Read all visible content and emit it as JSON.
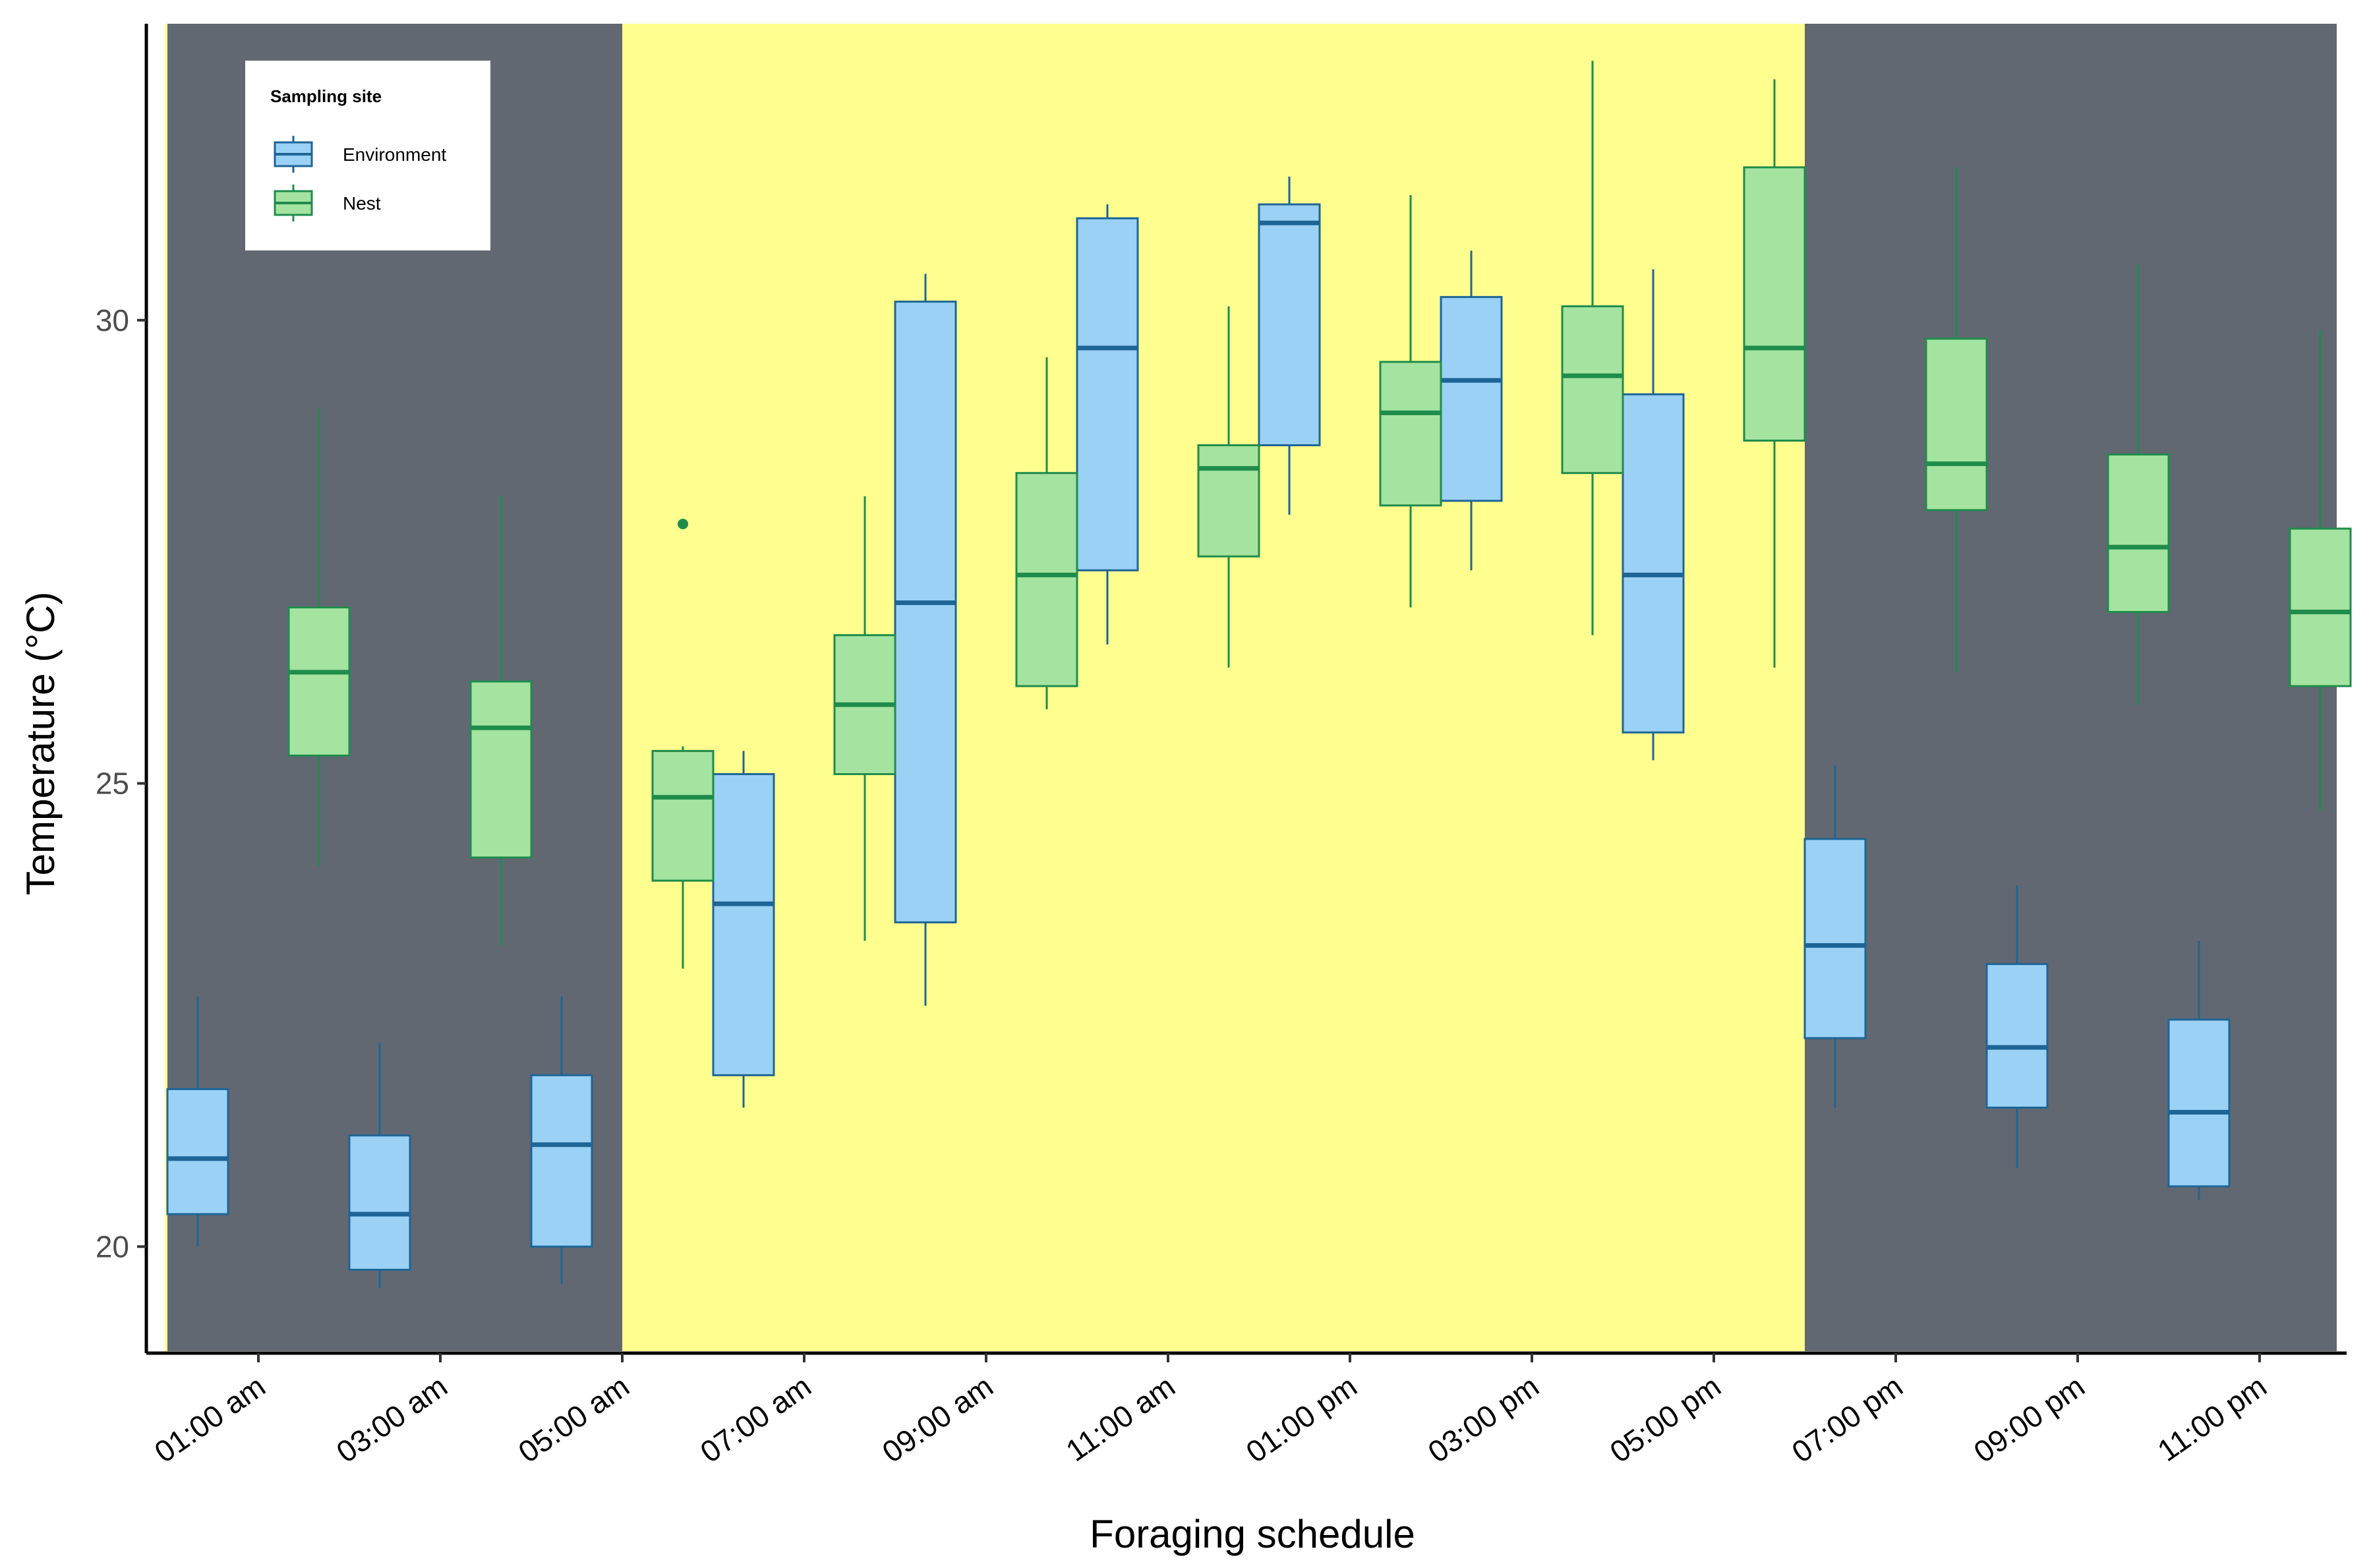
{
  "chart_data": {
    "type": "boxplot",
    "xlabel": "Foraging schedule",
    "ylabel": "Temperature (°C)",
    "ylim": [
      18.85,
      33.2
    ],
    "yticks": [
      20,
      25,
      30
    ],
    "categories": [
      "01:00 am",
      "03:00 am",
      "05:00 am",
      "07:00 am",
      "09:00 am",
      "11:00 am",
      "01:00 pm",
      "03:00 pm",
      "05:00 pm",
      "07:00 pm",
      "09:00 pm",
      "11:00 pm"
    ],
    "night_shading": {
      "color": "#626872",
      "daylight_color": "#ffff8f",
      "night_periods": [
        [
          "00:00 am",
          "05:00 am"
        ],
        [
          "06:00 pm",
          "12:00 am"
        ]
      ]
    },
    "legend": {
      "title": "Sampling site",
      "placement": "top-left"
    },
    "series": [
      {
        "name": "Environment",
        "fill": "#9ad1f5",
        "stroke": "#1e6596",
        "boxes": [
          {
            "whisker_low": 20.0,
            "q1": 20.35,
            "median": 20.95,
            "q3": 21.7,
            "whisker_high": 22.7,
            "outliers": []
          },
          {
            "whisker_low": 19.55,
            "q1": 19.75,
            "median": 20.35,
            "q3": 21.2,
            "whisker_high": 22.2,
            "outliers": []
          },
          {
            "whisker_low": 19.6,
            "q1": 20.0,
            "median": 21.1,
            "q3": 21.85,
            "whisker_high": 22.7,
            "outliers": []
          },
          {
            "whisker_low": 21.5,
            "q1": 21.85,
            "median": 23.7,
            "q3": 25.1,
            "whisker_high": 25.35,
            "outliers": []
          },
          {
            "whisker_low": 22.6,
            "q1": 23.5,
            "median": 26.95,
            "q3": 30.2,
            "whisker_high": 30.5,
            "outliers": []
          },
          {
            "whisker_low": 26.5,
            "q1": 27.3,
            "median": 29.7,
            "q3": 31.1,
            "whisker_high": 31.25,
            "outliers": []
          },
          {
            "whisker_low": 27.9,
            "q1": 28.65,
            "median": 31.05,
            "q3": 31.25,
            "whisker_high": 31.55,
            "outliers": []
          },
          {
            "whisker_low": 27.3,
            "q1": 28.05,
            "median": 29.35,
            "q3": 30.25,
            "whisker_high": 30.75,
            "outliers": []
          },
          {
            "whisker_low": 25.25,
            "q1": 25.55,
            "median": 27.25,
            "q3": 29.2,
            "whisker_high": 30.55,
            "outliers": []
          },
          {
            "whisker_low": 21.5,
            "q1": 22.25,
            "median": 23.25,
            "q3": 24.4,
            "whisker_high": 25.2,
            "outliers": []
          },
          {
            "whisker_low": 20.85,
            "q1": 21.5,
            "median": 22.15,
            "q3": 23.05,
            "whisker_high": 23.9,
            "outliers": []
          },
          {
            "whisker_low": 20.5,
            "q1": 20.65,
            "median": 21.45,
            "q3": 22.45,
            "whisker_high": 23.3,
            "outliers": []
          }
        ]
      },
      {
        "name": "Nest",
        "fill": "#a5e3a0",
        "stroke": "#1f8c4c",
        "boxes": [
          {
            "whisker_low": 24.1,
            "q1": 25.3,
            "median": 26.2,
            "q3": 26.9,
            "whisker_high": 29.05,
            "outliers": []
          },
          {
            "whisker_low": 23.25,
            "q1": 24.2,
            "median": 25.6,
            "q3": 26.1,
            "whisker_high": 28.1,
            "outliers": []
          },
          {
            "whisker_low": 23.0,
            "q1": 23.95,
            "median": 24.85,
            "q3": 25.35,
            "whisker_high": 25.4,
            "outliers": [
              27.8
            ]
          },
          {
            "whisker_low": 23.3,
            "q1": 25.1,
            "median": 25.85,
            "q3": 26.6,
            "whisker_high": 28.1,
            "outliers": []
          },
          {
            "whisker_low": 25.8,
            "q1": 26.05,
            "median": 27.25,
            "q3": 28.35,
            "whisker_high": 29.6,
            "outliers": []
          },
          {
            "whisker_low": 26.25,
            "q1": 27.45,
            "median": 28.4,
            "q3": 28.65,
            "whisker_high": 30.15,
            "outliers": []
          },
          {
            "whisker_low": 26.9,
            "q1": 28.0,
            "median": 29.0,
            "q3": 29.55,
            "whisker_high": 31.35,
            "outliers": []
          },
          {
            "whisker_low": 26.6,
            "q1": 28.35,
            "median": 29.4,
            "q3": 30.15,
            "whisker_high": 32.8,
            "outliers": []
          },
          {
            "whisker_low": 26.25,
            "q1": 28.7,
            "median": 29.7,
            "q3": 31.65,
            "whisker_high": 32.6,
            "outliers": []
          },
          {
            "whisker_low": 26.2,
            "q1": 27.95,
            "median": 28.45,
            "q3": 29.8,
            "whisker_high": 31.65,
            "outliers": []
          },
          {
            "whisker_low": 25.85,
            "q1": 26.85,
            "median": 27.55,
            "q3": 28.55,
            "whisker_high": 30.6,
            "outliers": []
          },
          {
            "whisker_low": 24.7,
            "q1": 26.05,
            "median": 26.85,
            "q3": 27.75,
            "whisker_high": 29.9,
            "outliers": []
          }
        ]
      }
    ]
  }
}
